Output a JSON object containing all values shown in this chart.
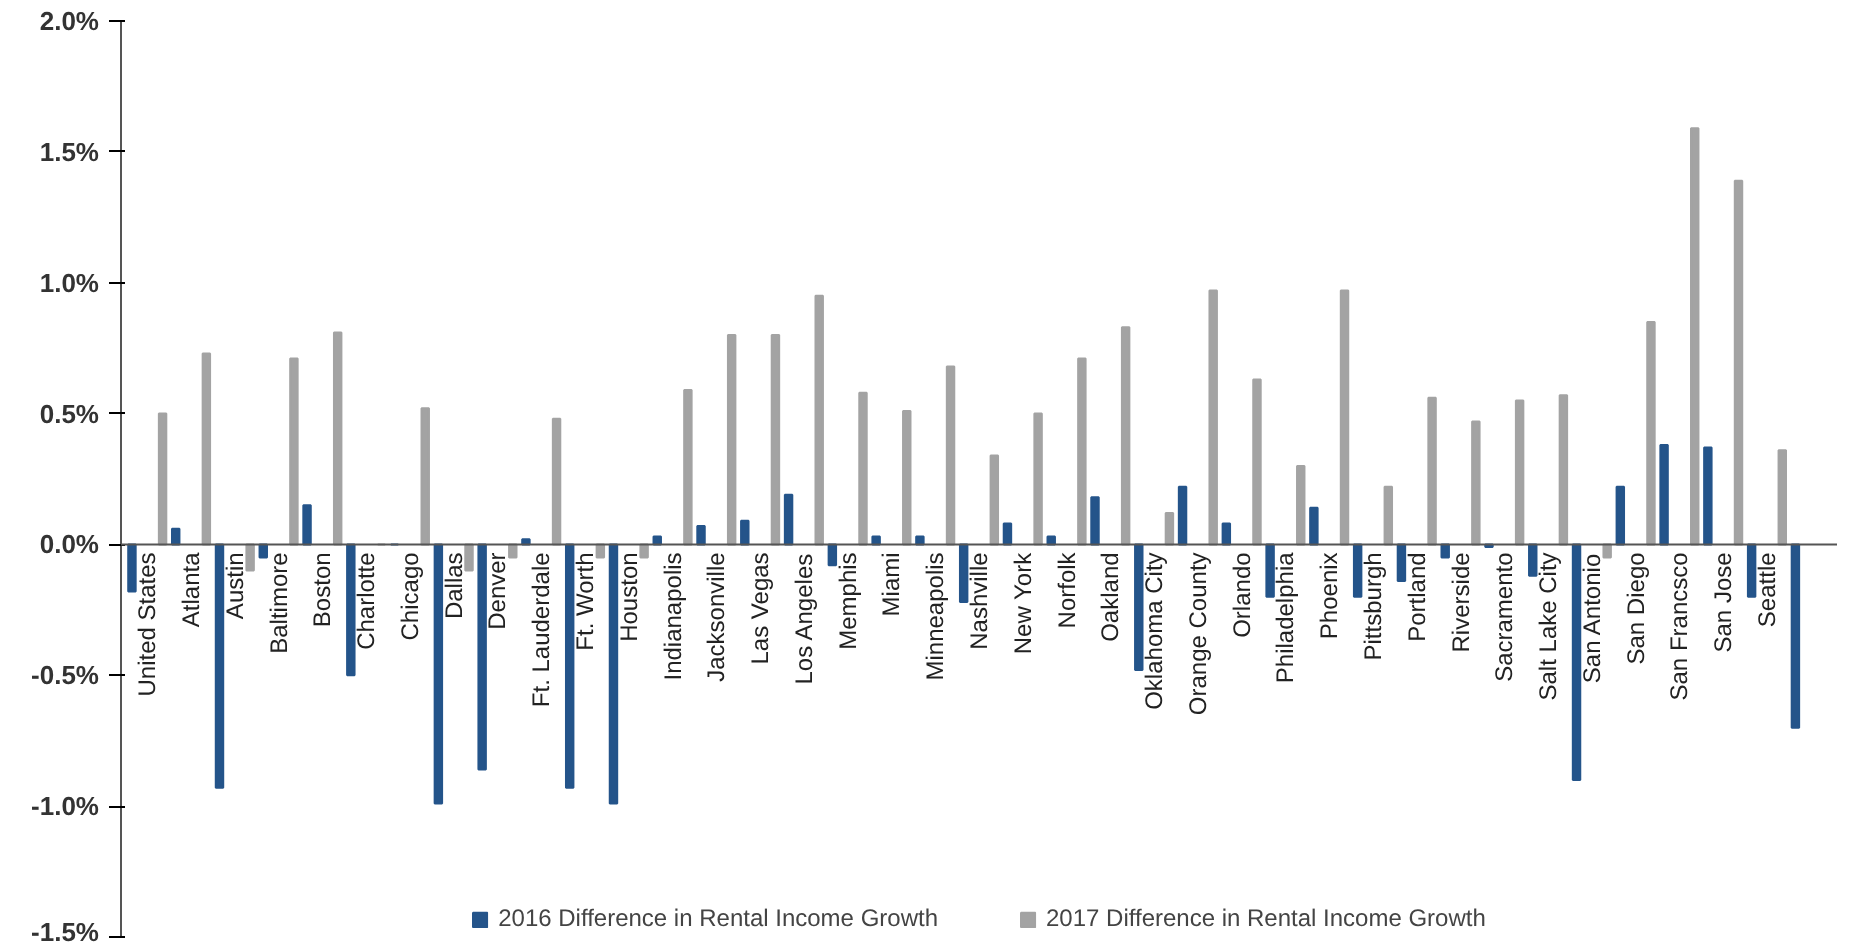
{
  "chart_data": {
    "type": "bar",
    "categories": [
      "United States",
      "Atlanta",
      "Austin",
      "Baltimore",
      "Boston",
      "Charlotte",
      "Chicago",
      "Dallas",
      "Denver",
      "Ft. Lauderdale",
      "Ft. Worth",
      "Houston",
      "Indianapolis",
      "Jacksonville",
      "Las Vegas",
      "Los Angeles",
      "Memphis",
      "Miami",
      "Minneapolis",
      "Nashville",
      "New York",
      "Norfolk",
      "Oakland",
      "Oklahoma City",
      "Orange County",
      "Orlando",
      "Philadelphia",
      "Phoenix",
      "Pittsburgh",
      "Portland",
      "Riverside",
      "Sacramento",
      "Salt Lake City",
      "San Antonio",
      "San Diego",
      "San Francsco",
      "San Jose",
      "Seattle",
      null
    ],
    "series": [
      {
        "name": "2016 Difference in Rental Income Growth",
        "color": "#24548a",
        "values": [
          -0.18,
          0.06,
          -0.93,
          -0.05,
          0.15,
          -0.5,
          0,
          -0.99,
          -0.86,
          0.02,
          -0.93,
          -0.99,
          0.03,
          0.07,
          0.09,
          0.19,
          -0.08,
          0.03,
          0.03,
          -0.22,
          0.08,
          0.03,
          0.18,
          -0.48,
          0.22,
          0.08,
          -0.2,
          0.14,
          -0.2,
          -0.14,
          -0.05,
          -0.01,
          -0.12,
          -0.9,
          0.22,
          0.38,
          0.37,
          -0.2,
          -0.7
        ]
      },
      {
        "name": "2017 Difference in Rental Income Growth",
        "color": "#a3a3a3",
        "values": [
          0.5,
          0.73,
          -0.1,
          0.71,
          0.81,
          0,
          0.52,
          -0.1,
          -0.05,
          0.48,
          -0.05,
          -0.05,
          0.59,
          0.8,
          0.8,
          0.95,
          0.58,
          0.51,
          0.68,
          0.34,
          0.5,
          0.71,
          0.83,
          0.12,
          0.97,
          0.63,
          0.3,
          0.97,
          0.22,
          0.56,
          0.47,
          0.55,
          0.57,
          -0.05,
          0.85,
          1.59,
          1.39,
          0.36,
          null
        ]
      }
    ],
    "ylim": [
      -1.5,
      2.0
    ],
    "yticks": [
      {
        "value": -1.5,
        "label": "-1.5%"
      },
      {
        "value": -1.0,
        "label": "-1.0%"
      },
      {
        "value": -0.5,
        "label": "-0.5%"
      },
      {
        "value": 0.0,
        "label": "0.0%"
      },
      {
        "value": 0.5,
        "label": "0.5%"
      },
      {
        "value": 1.0,
        "label": "1.0%"
      },
      {
        "value": 1.5,
        "label": "1.5%"
      },
      {
        "value": 2.0,
        "label": "2.0%"
      }
    ],
    "legend": "bottom"
  }
}
